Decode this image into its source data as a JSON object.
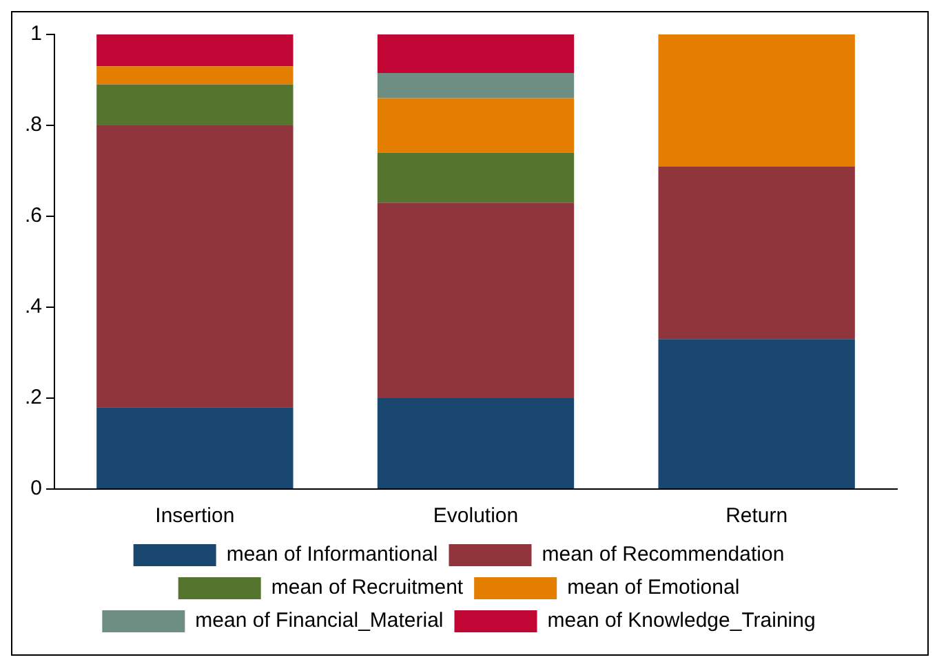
{
  "chart_data": {
    "type": "bar",
    "stacked": true,
    "categories": [
      "Insertion",
      "Evolution",
      "Return"
    ],
    "series": [
      {
        "name": "mean of Informantional",
        "color": "#1a476f",
        "values": [
          0.18,
          0.2,
          0.33
        ]
      },
      {
        "name": "mean of Recommendation",
        "color": "#90353b",
        "values": [
          0.62,
          0.43,
          0.38
        ]
      },
      {
        "name": "mean of Recruitment",
        "color": "#55752f",
        "values": [
          0.09,
          0.11,
          0
        ]
      },
      {
        "name": "mean of Emotional",
        "color": "#e37e00",
        "values": [
          0.04,
          0.12,
          0.29
        ]
      },
      {
        "name": "mean of Financial_Material",
        "color": "#6e8e84",
        "values": [
          0,
          0.055,
          0
        ]
      },
      {
        "name": "mean of Knowledge_Training",
        "color": "#c10534",
        "values": [
          0.07,
          0.085,
          0
        ]
      }
    ],
    "ylim": [
      0,
      1
    ],
    "yticks": [
      {
        "value": 0,
        "label": "0"
      },
      {
        "value": 0.2,
        "label": ".2"
      },
      {
        "value": 0.4,
        "label": ".4"
      },
      {
        "value": 0.6,
        "label": ".6"
      },
      {
        "value": 0.8,
        "label": ".8"
      },
      {
        "value": 1,
        "label": "1"
      }
    ],
    "grid": false,
    "legend": "bottom"
  }
}
